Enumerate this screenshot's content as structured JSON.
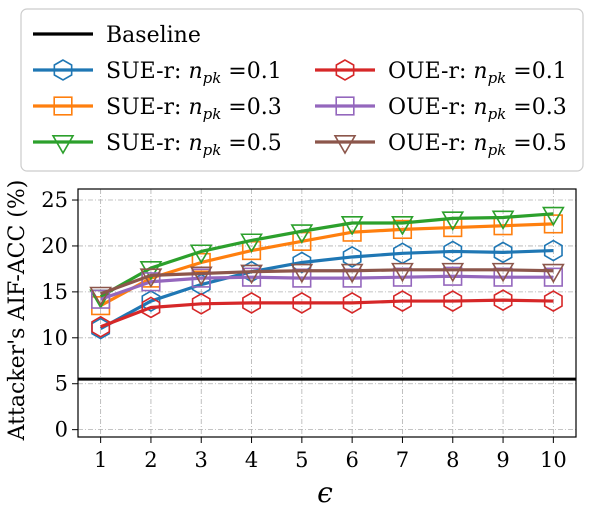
{
  "chart_data": {
    "type": "line",
    "xlabel": "ϵ",
    "ylabel": "Attacker's AIF-ACC (%)",
    "x": [
      1,
      2,
      3,
      4,
      5,
      6,
      7,
      8,
      9,
      10
    ],
    "xticks": [
      "1",
      "2",
      "3",
      "4",
      "5",
      "6",
      "7",
      "8",
      "9",
      "10"
    ],
    "yticks": [
      0,
      5,
      10,
      15,
      20,
      25
    ],
    "xlim": [
      0.55,
      10.45
    ],
    "ylim": [
      -0.8,
      26.2
    ],
    "grid": true,
    "legend_position": "top",
    "baseline": {
      "name": "Baseline",
      "value": 5.5,
      "color": "#000000"
    },
    "series": [
      {
        "name": "SUE-r: ",
        "sub": "pk",
        "param": "=0.1",
        "color": "#1f77b4",
        "marker": "hexagon",
        "values": [
          11.0,
          14.0,
          15.8,
          17.2,
          18.2,
          18.8,
          19.2,
          19.4,
          19.3,
          19.5
        ]
      },
      {
        "name": "SUE-r: ",
        "sub": "pk",
        "param": "=0.3",
        "color": "#ff7f0e",
        "marker": "square",
        "values": [
          13.5,
          16.5,
          18.2,
          19.5,
          20.5,
          21.5,
          21.8,
          22.0,
          22.2,
          22.4
        ]
      },
      {
        "name": "SUE-r: ",
        "sub": "pk",
        "param": "=0.5",
        "color": "#2ca02c",
        "marker": "triangle-down",
        "values": [
          14.5,
          17.6,
          19.4,
          20.6,
          21.6,
          22.5,
          22.5,
          23.0,
          23.1,
          23.5
        ]
      },
      {
        "name": "OUE-r: ",
        "sub": "pk",
        "param": "=0.1",
        "color": "#d62728",
        "marker": "hexagon",
        "values": [
          11.2,
          13.3,
          13.7,
          13.8,
          13.8,
          13.8,
          14.0,
          14.0,
          14.1,
          14.0
        ]
      },
      {
        "name": "OUE-r: ",
        "sub": "pk",
        "param": "=0.3",
        "color": "#9467bd",
        "marker": "square",
        "values": [
          14.2,
          16.1,
          16.5,
          16.6,
          16.5,
          16.5,
          16.6,
          16.7,
          16.6,
          16.6
        ]
      },
      {
        "name": "OUE-r: ",
        "sub": "pk",
        "param": "=0.5",
        "color": "#8c564b",
        "marker": "triangle-down",
        "values": [
          14.8,
          16.8,
          17.0,
          17.2,
          17.3,
          17.3,
          17.4,
          17.4,
          17.4,
          17.3
        ]
      }
    ]
  }
}
